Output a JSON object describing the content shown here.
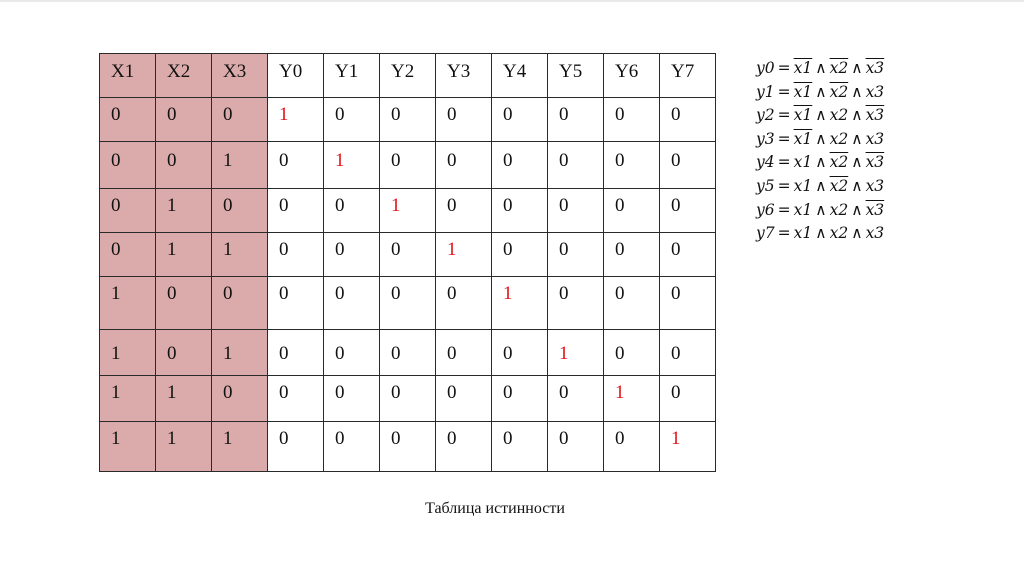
{
  "table": {
    "headers": [
      "X1",
      "X2",
      "X3",
      "Y0",
      "Y1",
      "Y2",
      "Y3",
      "Y4",
      "Y5",
      "Y6",
      "Y7"
    ],
    "rows": [
      [
        "0",
        "0",
        "0",
        "1",
        "0",
        "0",
        "0",
        "0",
        "0",
        "0",
        "0"
      ],
      [
        "0",
        "0",
        "1",
        "0",
        "1",
        "0",
        "0",
        "0",
        "0",
        "0",
        "0"
      ],
      [
        "0",
        "1",
        "0",
        "0",
        "0",
        "1",
        "0",
        "0",
        "0",
        "0",
        "0"
      ],
      [
        "0",
        "1",
        "1",
        "0",
        "0",
        "0",
        "1",
        "0",
        "0",
        "0",
        "0"
      ],
      [
        "1",
        "0",
        "0",
        "0",
        "0",
        "0",
        "0",
        "1",
        "0",
        "0",
        "0"
      ],
      [
        "1",
        "0",
        "1",
        "0",
        "0",
        "0",
        "0",
        "0",
        "1",
        "0",
        "0"
      ],
      [
        "1",
        "1",
        "0",
        "0",
        "0",
        "0",
        "0",
        "0",
        "0",
        "1",
        "0"
      ],
      [
        "1",
        "1",
        "1",
        "0",
        "0",
        "0",
        "0",
        "0",
        "0",
        "0",
        "1"
      ]
    ],
    "input_column_color": "#dbaaaa",
    "highlight_color": "#e0141a"
  },
  "formulas": [
    {
      "out": "y0",
      "eq": "=",
      "and": "∧",
      "terms": [
        {
          "t": "x1",
          "neg": true
        },
        {
          "t": "x2",
          "neg": true
        },
        {
          "t": "x3",
          "neg": true
        }
      ]
    },
    {
      "out": "y1",
      "eq": "=",
      "and": "∧",
      "terms": [
        {
          "t": "x1",
          "neg": true
        },
        {
          "t": "x2",
          "neg": true
        },
        {
          "t": "x3",
          "neg": false
        }
      ]
    },
    {
      "out": "y2",
      "eq": "=",
      "and": "∧",
      "terms": [
        {
          "t": "x1",
          "neg": true
        },
        {
          "t": "x2",
          "neg": false
        },
        {
          "t": "x3",
          "neg": true
        }
      ]
    },
    {
      "out": "y3",
      "eq": "=",
      "and": "∧",
      "terms": [
        {
          "t": "x1",
          "neg": true
        },
        {
          "t": "x2",
          "neg": false
        },
        {
          "t": "x3",
          "neg": false
        }
      ]
    },
    {
      "out": "y4",
      "eq": "=",
      "and": "∧",
      "terms": [
        {
          "t": "x1",
          "neg": false
        },
        {
          "t": "x2",
          "neg": true
        },
        {
          "t": "x3",
          "neg": true
        }
      ]
    },
    {
      "out": "y5",
      "eq": "=",
      "and": "∧",
      "terms": [
        {
          "t": "x1",
          "neg": false
        },
        {
          "t": "x2",
          "neg": true
        },
        {
          "t": "x3",
          "neg": false
        }
      ]
    },
    {
      "out": "y6",
      "eq": "=",
      "and": "∧",
      "terms": [
        {
          "t": "x1",
          "neg": false
        },
        {
          "t": "x2",
          "neg": false
        },
        {
          "t": "x3",
          "neg": true
        }
      ]
    },
    {
      "out": "y7",
      "eq": "=",
      "and": "∧",
      "terms": [
        {
          "t": "x1",
          "neg": false
        },
        {
          "t": "x2",
          "neg": false
        },
        {
          "t": "x3",
          "neg": false
        }
      ]
    }
  ],
  "caption": "Таблица истинности"
}
